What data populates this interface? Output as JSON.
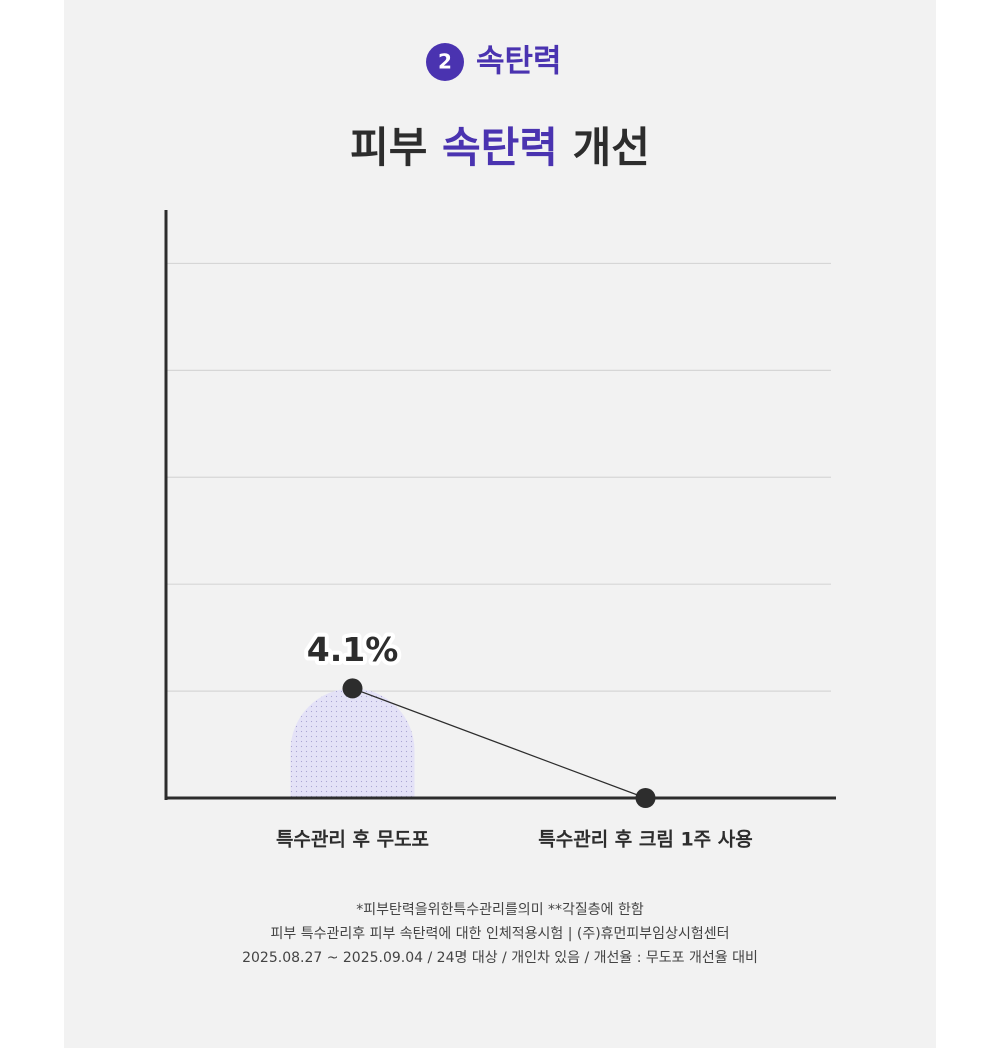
{
  "chart_data": {
    "type": "line",
    "badge": "2",
    "section": "속탄력",
    "title_start": "피부",
    "title_highlight": "속탄력",
    "title_end": "개선",
    "categories": [
      "특수관리 후 무도포",
      "특수관리 후 크림 1주 사용"
    ],
    "values": [
      4.1,
      0
    ],
    "value_labels": [
      "4.1%",
      null
    ],
    "color": "#2d2d2d",
    "highlight_color": "#4a33b0",
    "bar_color": "#e4e2f7",
    "ylim": [
      0,
      22
    ],
    "yticks": [
      4,
      8,
      12,
      16,
      20
    ],
    "grid": true,
    "notes": [
      "*피부탄력을위한특수관리를의미 **각질층에 한함",
      "피부 특수관리후 피부 속탄력에 대한 인체적용시험 | (주)휴먼피부임상시험센터",
      "2025.08.27 ~ 2025.09.04 / 24명 대상 / 개인차 있음 / 개선율 : 무도포 개선율 대비"
    ]
  }
}
